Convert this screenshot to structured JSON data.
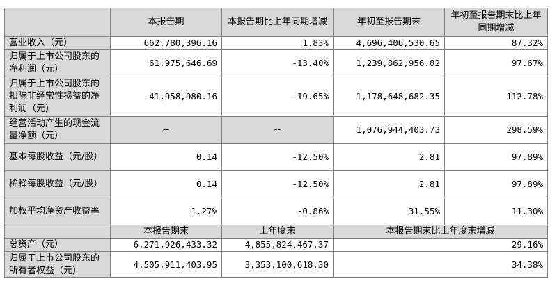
{
  "header": {
    "col1": "本报告期",
    "col2": "本报告期比上年同期增减",
    "col3": "年初至报告期末",
    "col4": "年初至报告期末比上年同期增减"
  },
  "rows": [
    {
      "label": "营业收入（元）",
      "v1": "662,780,396.16",
      "v2": "1.83%",
      "v3": "4,696,406,530.65",
      "v4": "87.32%"
    },
    {
      "label": "归属于上市公司股东的净利润（元）",
      "v1": "61,975,646.69",
      "v2": "-13.40%",
      "v3": "1,239,862,956.82",
      "v4": "97.67%"
    },
    {
      "label": "归属于上市公司股东的扣除非经常性损益的净利润（元）",
      "v1": "41,958,980.16",
      "v2": "-19.65%",
      "v3": "1,178,648,682.35",
      "v4": "112.78%"
    },
    {
      "label": "经营活动产生的现金流量净额（元）",
      "v1": "--",
      "v2": "--",
      "v3": "1,076,944,403.73",
      "v4": "298.59%"
    },
    {
      "label": "基本每股收益（元/股）",
      "v1": "0.14",
      "v2": "-12.50%",
      "v3": "2.81",
      "v4": "97.89%"
    },
    {
      "label": "稀释每股收益（元/股）",
      "v1": "0.14",
      "v2": "-12.50%",
      "v3": "2.81",
      "v4": "97.89%"
    },
    {
      "label": "加权平均净资产收益率",
      "v1": "1.27%",
      "v2": "-0.86%",
      "v3": "31.55%",
      "v4": "11.30%"
    }
  ],
  "header2": {
    "col1": "本报告期末",
    "col2": "上年度末",
    "col3": "本报告期末比上年度末增减"
  },
  "rows2": [
    {
      "label": "总资产（元）",
      "v1": "6,271,926,433.32",
      "v2": "4,855,824,467.37",
      "v3": "29.16%"
    },
    {
      "label": "归属于上市公司股东的所有者权益（元）",
      "v1": "4,505,911,403.95",
      "v2": "3,353,100,618.30",
      "v3": "34.38%"
    }
  ]
}
